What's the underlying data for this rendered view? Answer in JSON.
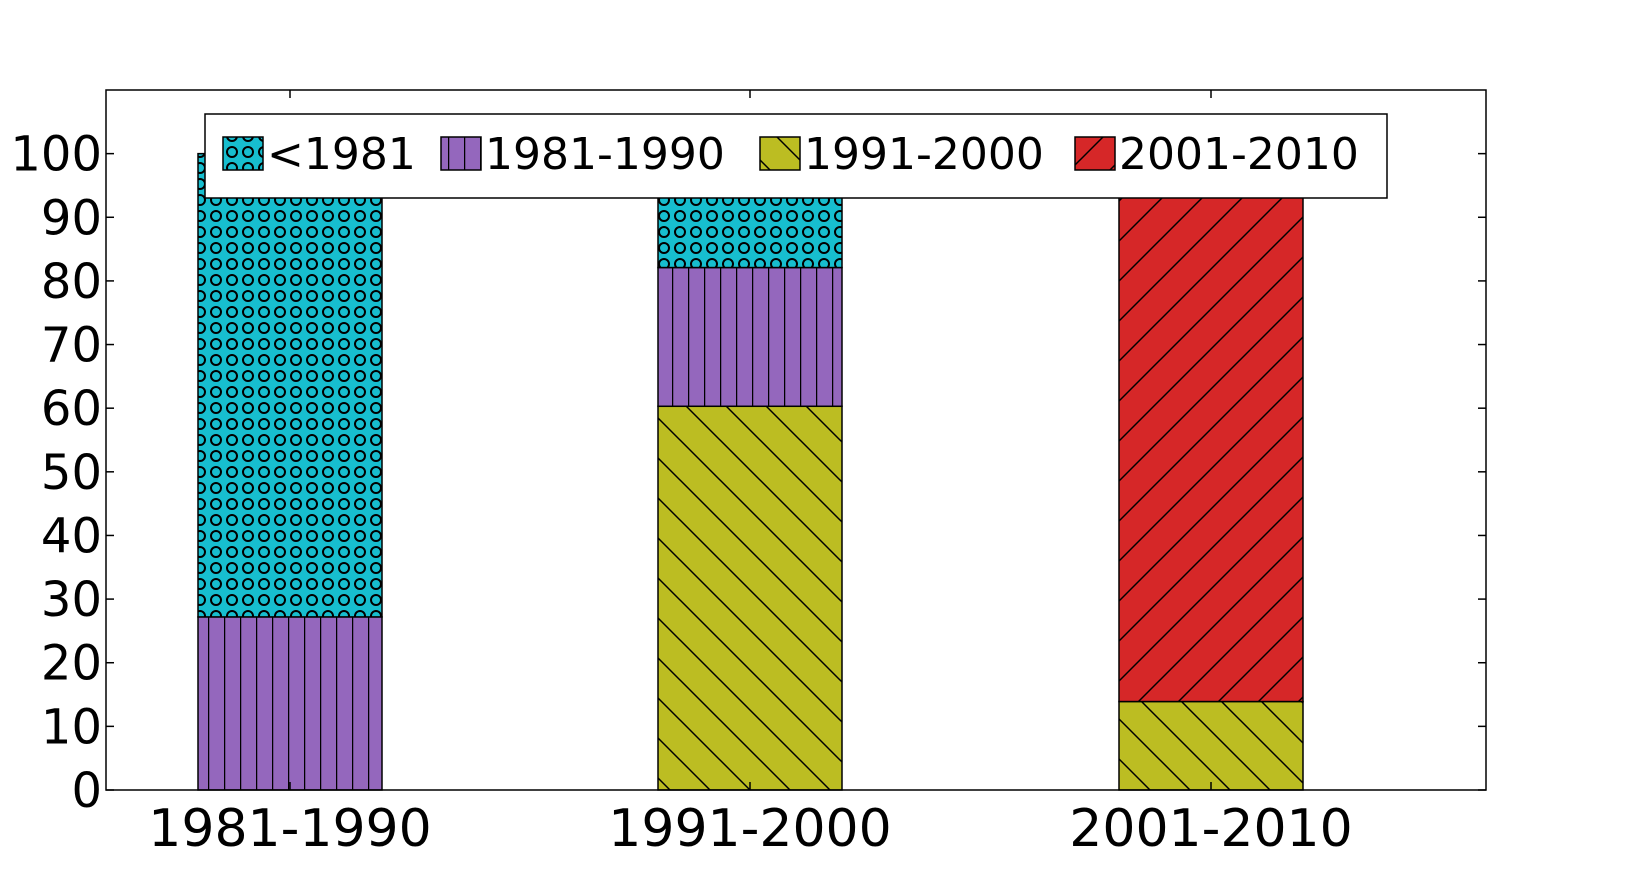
{
  "chart_data": {
    "type": "bar",
    "stacked": true,
    "categories": [
      "1981-1990",
      "1991-2000",
      "2001-2010"
    ],
    "series": [
      {
        "name": "<1981",
        "color": "#17becf",
        "hatch": "circles",
        "values": [
          72.8,
          17.9,
          2.8
        ]
      },
      {
        "name": "1981-1990",
        "color": "#9467bd",
        "hatch": "vertical",
        "values": [
          27.2,
          21.8,
          3.1
        ]
      },
      {
        "name": "1991-2000",
        "color": "#bcbd22",
        "hatch": "backslash",
        "values": [
          0,
          60.3,
          13.9
        ]
      },
      {
        "name": "2001-2010",
        "color": "#d62728",
        "hatch": "slash",
        "values": [
          0,
          0,
          80.2
        ]
      }
    ],
    "stack_order": [
      "1991-2000",
      "2001-2010",
      "1981-1990",
      "<1981"
    ],
    "yticks": [
      "0",
      "10",
      "20",
      "30",
      "40",
      "50",
      "60",
      "70",
      "80",
      "90",
      "100"
    ],
    "ylim": [
      0,
      110
    ],
    "legend_position": "top-center",
    "grid": false
  }
}
